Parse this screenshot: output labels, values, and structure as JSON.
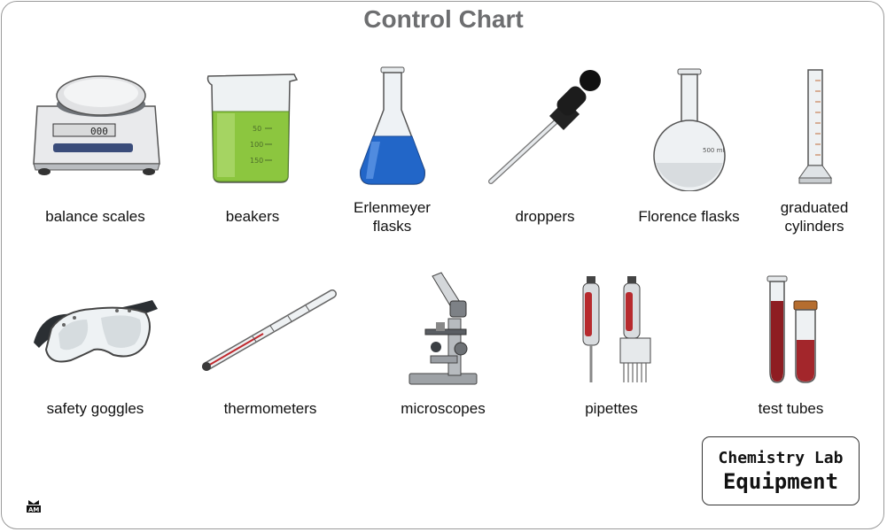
{
  "title": "Control Chart",
  "items": {
    "balance_scales": "balance scales",
    "beakers": "beakers",
    "erlenmeyer_flasks": "Erlenmeyer\nflasks",
    "droppers": "droppers",
    "florence_flasks": "Florence flasks",
    "graduated_cylinders": "graduated\ncylinders",
    "safety_goggles": "safety goggles",
    "thermometers": "thermometers",
    "microscopes": "microscopes",
    "pipettes": "pipettes",
    "test_tubes": "test tubes"
  },
  "image_text": {
    "scale_display": "000",
    "beaker_marks": [
      "50",
      "100",
      "150"
    ],
    "florence_mark": "500 ml"
  },
  "badge": {
    "line1": "Chemistry Lab",
    "line2": "Equipment"
  },
  "logo_text": "AM"
}
